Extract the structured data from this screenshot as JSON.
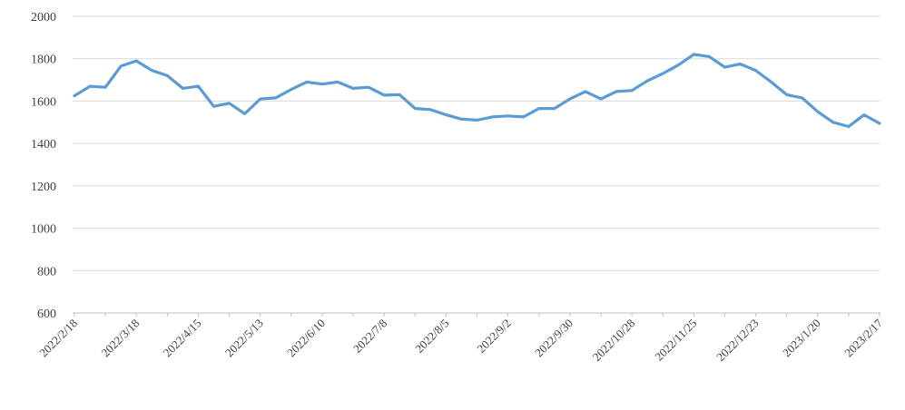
{
  "chart_data": {
    "type": "line",
    "title": "",
    "legend": "none",
    "grid": true,
    "ylim": [
      600,
      2000
    ],
    "y_ticks": [
      600,
      800,
      1000,
      1200,
      1400,
      1600,
      1800,
      2000
    ],
    "x_tick_labels": [
      "2022/2/18",
      "2022/3/18",
      "2022/4/15",
      "2022/5/13",
      "2022/6/10",
      "2022/7/8",
      "2022/8/5",
      "2022/9/2",
      "2022/9/30",
      "2022/10/28",
      "2022/11/25",
      "2022/12/23",
      "2023/1/20",
      "2023/2/17"
    ],
    "label_every_n_points": 4,
    "minor_tick_every_n_points": 2,
    "values": [
      1625,
      1670,
      1665,
      1765,
      1790,
      1745,
      1720,
      1660,
      1670,
      1575,
      1590,
      1540,
      1610,
      1615,
      1655,
      1690,
      1680,
      1690,
      1660,
      1665,
      1628,
      1630,
      1565,
      1560,
      1535,
      1515,
      1510,
      1525,
      1530,
      1525,
      1565,
      1565,
      1610,
      1645,
      1610,
      1645,
      1650,
      1695,
      1730,
      1770,
      1820,
      1810,
      1760,
      1775,
      1745,
      1690,
      1630,
      1615,
      1550,
      1500,
      1480,
      1535,
      1495
    ],
    "colors": {
      "line": "#5b9bd5",
      "gridline": "#d9d9d9",
      "axis": "#bfbfbf",
      "labels": "#404040",
      "background": "#ffffff"
    }
  }
}
